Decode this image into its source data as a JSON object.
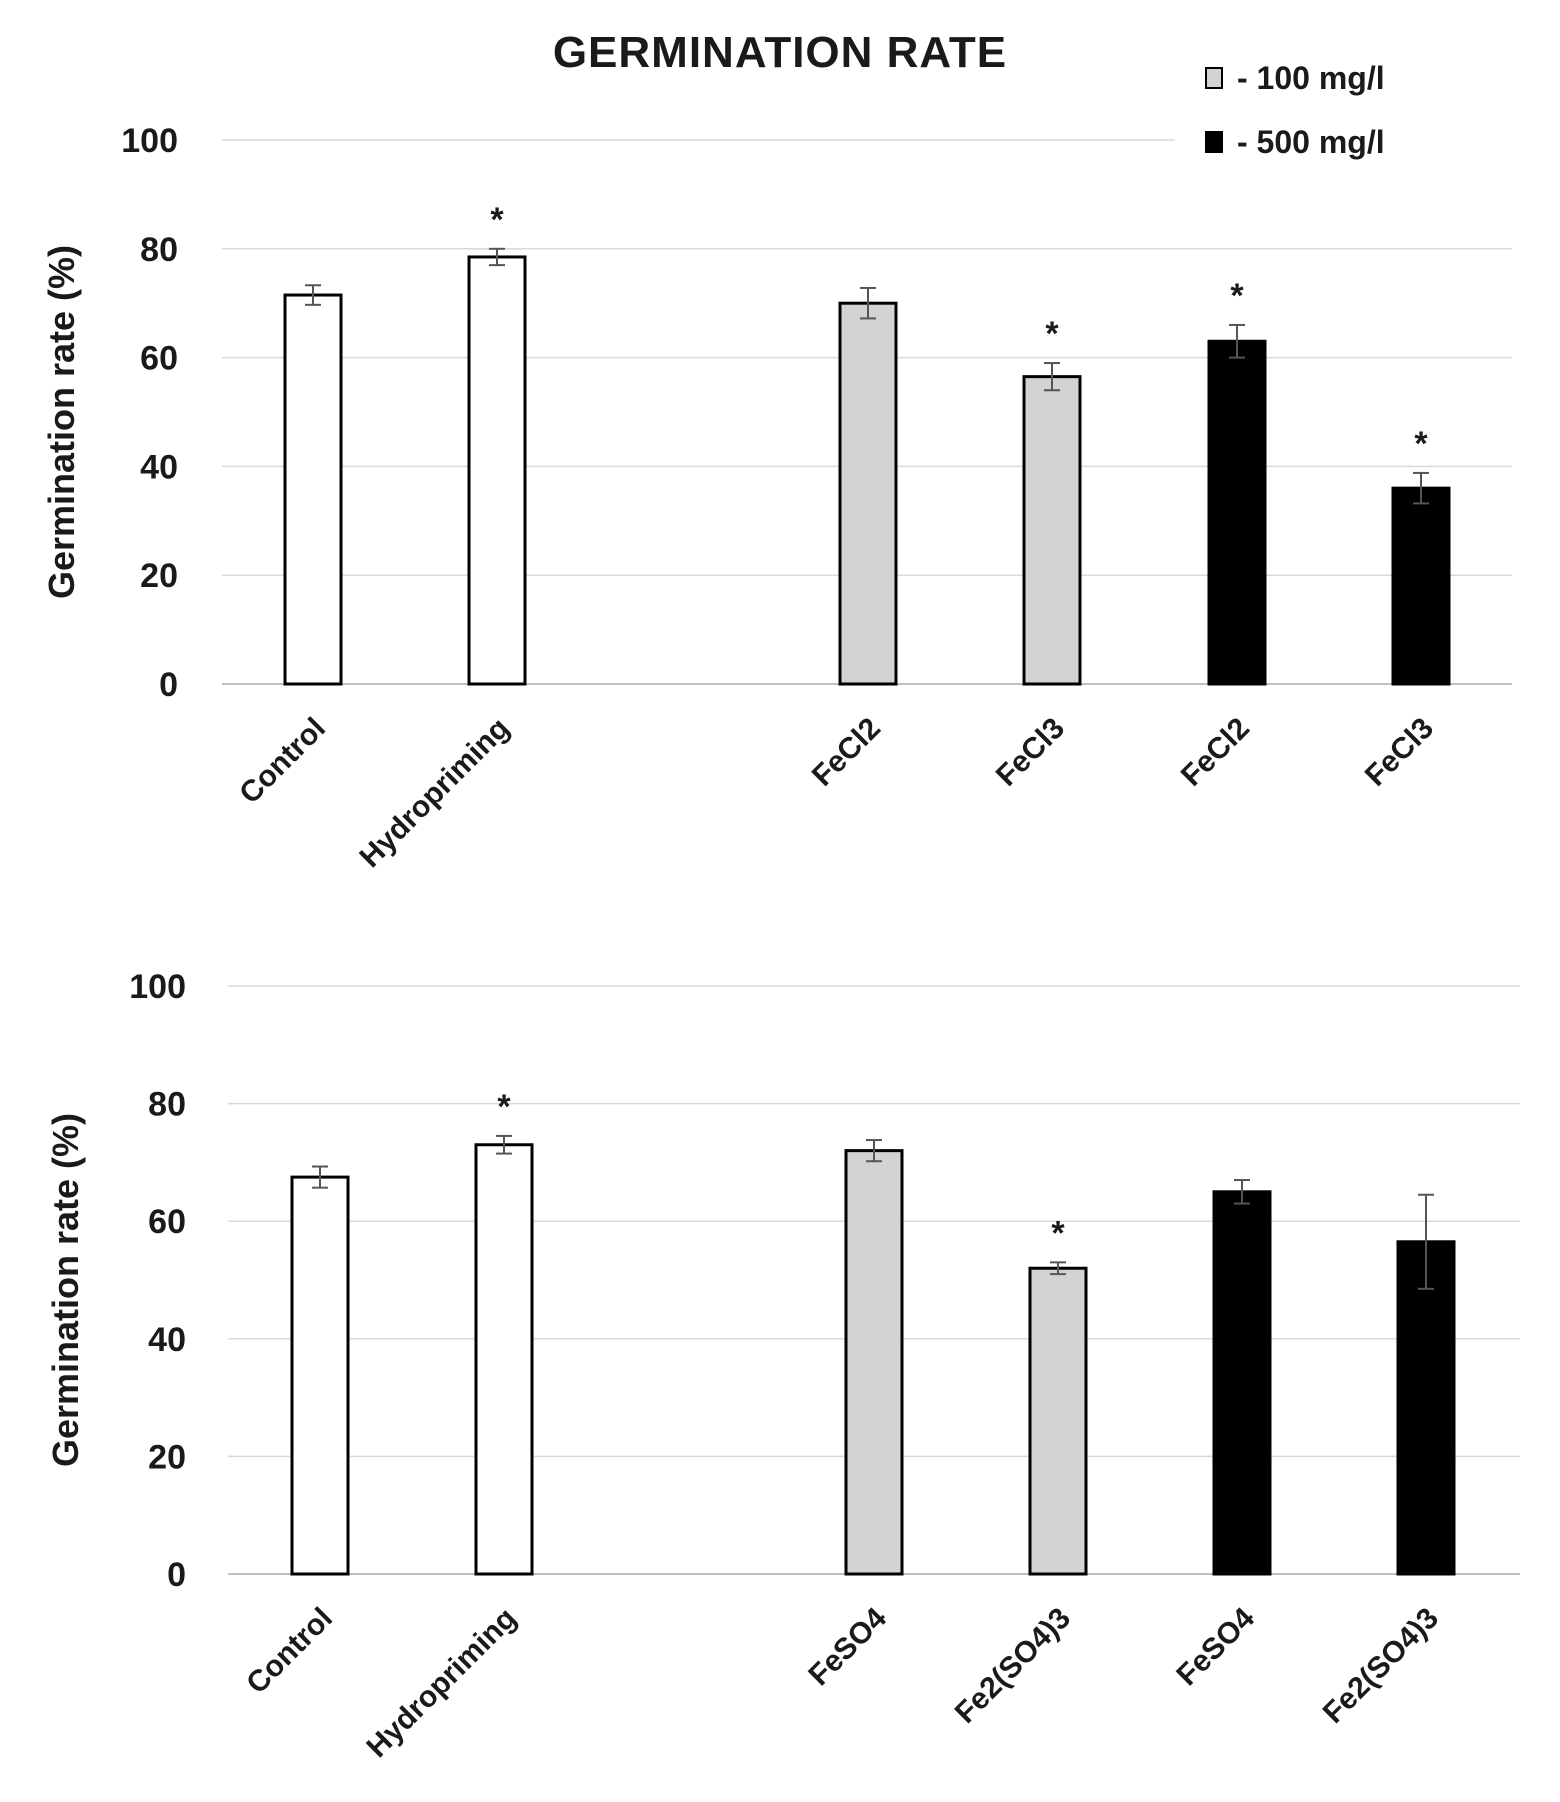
{
  "chart_data": [
    {
      "type": "bar",
      "title": "GERMINATION RATE",
      "ylabel": "Germination rate (%)",
      "xlabel": "",
      "ylim": [
        0,
        100
      ],
      "yticks": [
        "0",
        "20",
        "40",
        "60",
        "80",
        "100"
      ],
      "grid": true,
      "legend": {
        "placement": "top-right",
        "entries": [
          {
            "label": "- 100 mg/l",
            "color": "#d3d3d3"
          },
          {
            "label": "- 500 mg/l",
            "color": "#000000"
          }
        ]
      },
      "categories": [
        "Control",
        "Hydropriming",
        "FeCl2",
        "FeCl3",
        "FeCl2",
        "FeCl3"
      ],
      "values": [
        71.5,
        78.5,
        70,
        56.5,
        63,
        36
      ],
      "errors": [
        1.8,
        1.5,
        2.8,
        2.5,
        3.0,
        2.8
      ],
      "significance": [
        "",
        "*",
        "",
        "*",
        "*",
        "*"
      ],
      "colors": [
        "#ffffff",
        "#ffffff",
        "#d3d3d3",
        "#d3d3d3",
        "#000000",
        "#000000"
      ]
    },
    {
      "type": "bar",
      "ylabel": "Germination rate (%)",
      "xlabel": "",
      "ylim": [
        0,
        100
      ],
      "yticks": [
        "0",
        "20",
        "40",
        "60",
        "80",
        "100"
      ],
      "grid": true,
      "categories": [
        "Control",
        "Hydropriming",
        "FeSO4",
        "Fe2(SO4)3",
        "FeSO4",
        "Fe2(SO4)3"
      ],
      "values": [
        67.5,
        73,
        72,
        52,
        65,
        56.5
      ],
      "errors": [
        1.8,
        1.5,
        1.8,
        1.0,
        2.0,
        8.0
      ],
      "significance": [
        "",
        "*",
        "",
        "*",
        "",
        ""
      ],
      "colors": [
        "#ffffff",
        "#ffffff",
        "#d3d3d3",
        "#d3d3d3",
        "#000000",
        "#000000"
      ]
    }
  ]
}
